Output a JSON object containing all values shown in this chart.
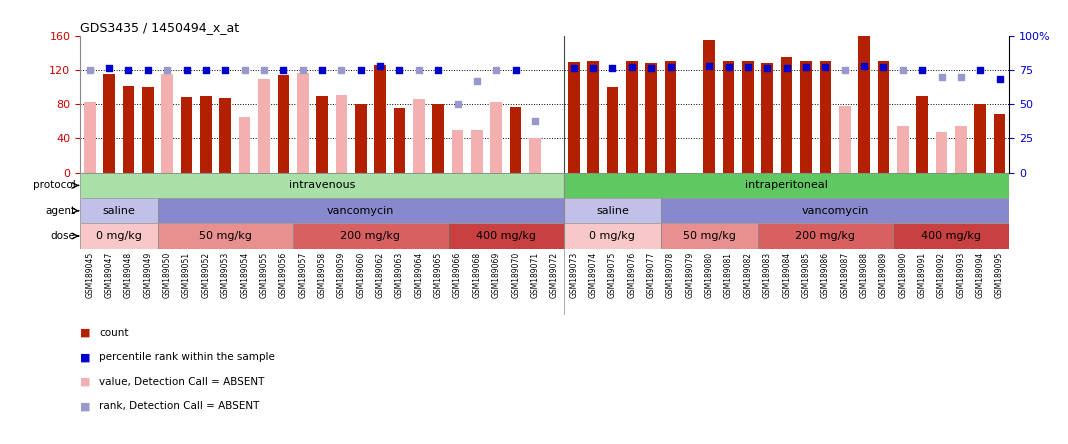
{
  "title": "GDS3435 / 1450494_x_at",
  "samples": [
    "GSM189045",
    "GSM189047",
    "GSM189048",
    "GSM189049",
    "GSM189050",
    "GSM189051",
    "GSM189052",
    "GSM189053",
    "GSM189054",
    "GSM189055",
    "GSM189056",
    "GSM189057",
    "GSM189058",
    "GSM189059",
    "GSM189060",
    "GSM189062",
    "GSM189063",
    "GSM189064",
    "GSM189065",
    "GSM189066",
    "GSM189068",
    "GSM189069",
    "GSM189070",
    "GSM189071",
    "GSM189072",
    "GSM189073",
    "GSM189074",
    "GSM189075",
    "GSM189076",
    "GSM189077",
    "GSM189078",
    "GSM189079",
    "GSM189080",
    "GSM189081",
    "GSM189082",
    "GSM189083",
    "GSM189084",
    "GSM189085",
    "GSM189086",
    "GSM189087",
    "GSM189088",
    "GSM189089",
    "GSM189090",
    "GSM189091",
    "GSM189092",
    "GSM189093",
    "GSM189094",
    "GSM189095"
  ],
  "count": [
    null,
    115,
    101,
    100,
    null,
    88,
    89,
    87,
    null,
    null,
    114,
    null,
    90,
    null,
    80,
    126,
    75,
    null,
    80,
    null,
    null,
    null,
    77,
    null,
    null,
    129,
    130,
    100,
    130,
    128,
    130,
    null,
    155,
    130,
    130,
    128,
    135,
    130,
    130,
    null,
    163,
    130,
    null,
    90,
    null,
    null,
    80,
    68
  ],
  "value_absent": [
    82,
    null,
    null,
    null,
    115,
    null,
    null,
    null,
    65,
    109,
    null,
    116,
    null,
    91,
    null,
    null,
    null,
    86,
    null,
    50,
    50,
    83,
    null,
    40,
    null,
    null,
    null,
    null,
    null,
    null,
    null,
    null,
    null,
    null,
    null,
    null,
    null,
    null,
    null,
    78,
    null,
    null,
    55,
    null,
    48,
    55,
    null,
    null
  ],
  "rank": [
    null,
    76,
    75,
    75,
    null,
    75,
    75,
    75,
    null,
    null,
    75,
    null,
    75,
    null,
    75,
    78,
    75,
    null,
    75,
    null,
    null,
    null,
    75,
    null,
    null,
    76,
    76,
    76,
    77,
    76,
    77,
    null,
    78,
    77,
    77,
    76,
    76,
    77,
    77,
    null,
    78,
    77,
    null,
    75,
    null,
    null,
    75,
    68
  ],
  "rank_absent": [
    75,
    null,
    null,
    null,
    75,
    null,
    null,
    null,
    75,
    75,
    null,
    75,
    null,
    75,
    null,
    null,
    null,
    75,
    null,
    50,
    67,
    75,
    null,
    38,
    null,
    null,
    null,
    null,
    null,
    null,
    null,
    null,
    null,
    null,
    null,
    null,
    null,
    null,
    null,
    75,
    null,
    null,
    75,
    null,
    70,
    70,
    null,
    null
  ],
  "protocol_groups": [
    {
      "label": "intravenous",
      "start": 0,
      "end": 25,
      "color": "#a8e0a8"
    },
    {
      "label": "intraperitoneal",
      "start": 25,
      "end": 48,
      "color": "#60c860"
    }
  ],
  "agent_groups": [
    {
      "label": "saline",
      "start": 0,
      "end": 4,
      "color": "#c0c0e8"
    },
    {
      "label": "vancomycin",
      "start": 4,
      "end": 25,
      "color": "#8888cc"
    },
    {
      "label": "saline",
      "start": 25,
      "end": 30,
      "color": "#c0c0e8"
    },
    {
      "label": "vancomycin",
      "start": 30,
      "end": 48,
      "color": "#8888cc"
    }
  ],
  "dose_groups": [
    {
      "label": "0 mg/kg",
      "start": 0,
      "end": 4,
      "color": "#f8c8c8"
    },
    {
      "label": "50 mg/kg",
      "start": 4,
      "end": 11,
      "color": "#e89090"
    },
    {
      "label": "200 mg/kg",
      "start": 11,
      "end": 19,
      "color": "#d86060"
    },
    {
      "label": "400 mg/kg",
      "start": 19,
      "end": 25,
      "color": "#c84040"
    },
    {
      "label": "0 mg/kg",
      "start": 25,
      "end": 30,
      "color": "#f8c8c8"
    },
    {
      "label": "50 mg/kg",
      "start": 30,
      "end": 35,
      "color": "#e89090"
    },
    {
      "label": "200 mg/kg",
      "start": 35,
      "end": 42,
      "color": "#d86060"
    },
    {
      "label": "400 mg/kg",
      "start": 42,
      "end": 48,
      "color": "#c84040"
    }
  ],
  "bar_color_dark": "#b22000",
  "bar_color_absent": "#f4b0b0",
  "dot_color_present": "#0000cc",
  "dot_color_absent": "#9898cc",
  "ylim_left": [
    0,
    160
  ],
  "ylim_right": [
    0,
    100
  ],
  "yticks_left": [
    0,
    40,
    80,
    120,
    160
  ],
  "yticks_right": [
    0,
    25,
    50,
    75,
    100
  ],
  "ytick_labels_right": [
    "0",
    "25",
    "50",
    "75",
    "100%"
  ],
  "legend": [
    {
      "label": "count",
      "color": "#b22000"
    },
    {
      "label": "percentile rank within the sample",
      "color": "#0000cc"
    },
    {
      "label": "value, Detection Call = ABSENT",
      "color": "#f4b0b0"
    },
    {
      "label": "rank, Detection Call = ABSENT",
      "color": "#9898cc"
    }
  ],
  "separator_col": 24,
  "xtick_bg": "#d8d8d8"
}
